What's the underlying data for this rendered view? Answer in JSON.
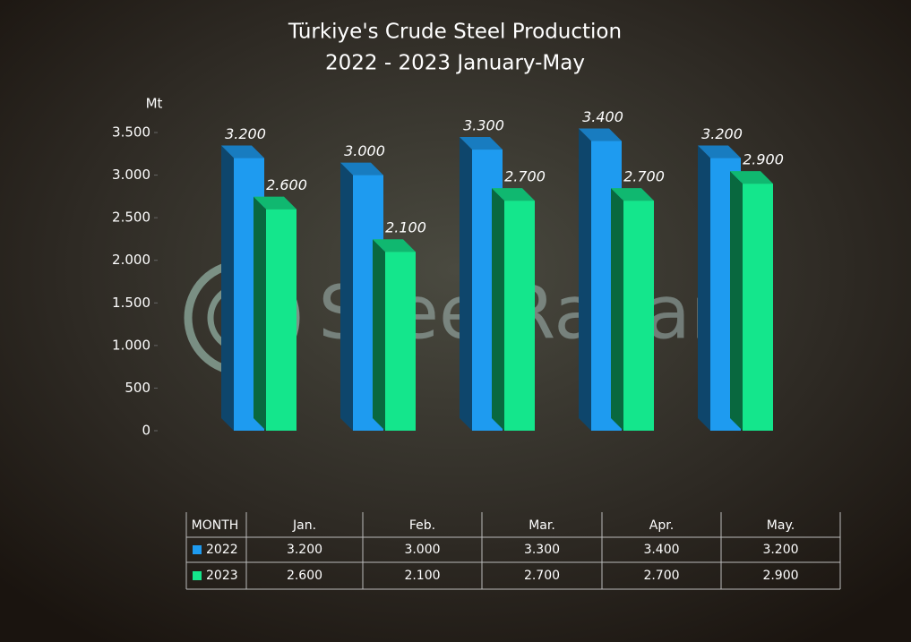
{
  "watermark": "SteelRadar",
  "chart_data": {
    "type": "bar",
    "title": "Türkiye's Crude Steel Production",
    "subtitle": "2022 - 2023 January-May",
    "y_label": "Mt",
    "table_header": "MONTH",
    "categories": [
      "Jan.",
      "Feb.",
      "Mar.",
      "Apr.",
      "May."
    ],
    "series": [
      {
        "name": "2022",
        "color": "#1e9bf0",
        "values": [
          3200,
          3000,
          3300,
          3400,
          3200
        ],
        "value_labels": [
          "3.200",
          "3.000",
          "3.300",
          "3.400",
          "3.200"
        ]
      },
      {
        "name": "2023",
        "color": "#14e68c",
        "values": [
          2600,
          2100,
          2700,
          2700,
          2900
        ],
        "value_labels": [
          "2.600",
          "2.100",
          "2.700",
          "2.700",
          "2.900"
        ]
      }
    ],
    "ylim": [
      0,
      3500
    ],
    "yticks": [
      0,
      500,
      {
        "value": 1000,
        "label": "1.000"
      },
      {
        "value": 1500,
        "label": "1.500"
      },
      {
        "value": 2000,
        "label": "2.000"
      },
      {
        "value": 2500,
        "label": "2.500"
      },
      {
        "value": 3000,
        "label": "3.000"
      },
      {
        "value": 3500,
        "label": "3.500"
      }
    ],
    "grid": false
  }
}
